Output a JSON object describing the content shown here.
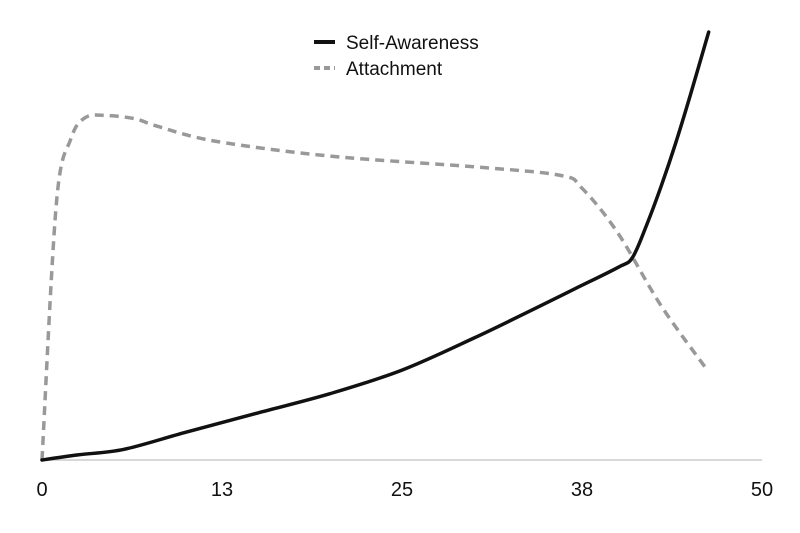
{
  "chart_data": {
    "type": "line",
    "title": "",
    "xlabel": "",
    "ylabel": "",
    "xlim": [
      0,
      50
    ],
    "ylim": [
      0,
      100
    ],
    "x_ticks": [
      {
        "value": 0,
        "label": "0"
      },
      {
        "value": 12.5,
        "label": "13"
      },
      {
        "value": 25,
        "label": "25"
      },
      {
        "value": 37.5,
        "label": "38"
      },
      {
        "value": 50,
        "label": "50"
      }
    ],
    "y_axis_visible": false,
    "grid": false,
    "legend": "top-center",
    "series": [
      {
        "name": "Self-Awareness",
        "style": "solid",
        "color": "#111111",
        "x": [
          0,
          2.5,
          5.7,
          10,
          15,
          20,
          25,
          30,
          34,
          37,
          40,
          41,
          42,
          43,
          44,
          45,
          46.3
        ],
        "y": [
          0,
          1.2,
          2.5,
          6.5,
          11,
          15.5,
          21,
          28.5,
          35,
          40,
          45,
          47.3,
          55,
          64,
          74,
          85,
          100
        ]
      },
      {
        "name": "Attachment",
        "style": "dashed",
        "color": "#999999",
        "x": [
          0,
          1,
          2,
          3,
          4.5,
          6.5,
          8,
          12,
          20,
          30,
          36,
          37.5,
          40,
          43,
          46.2
        ],
        "y": [
          0,
          60,
          75,
          80,
          80.5,
          79.7,
          78,
          74.5,
          71,
          68.5,
          66.5,
          63.5,
          53,
          36,
          21
        ]
      }
    ]
  }
}
